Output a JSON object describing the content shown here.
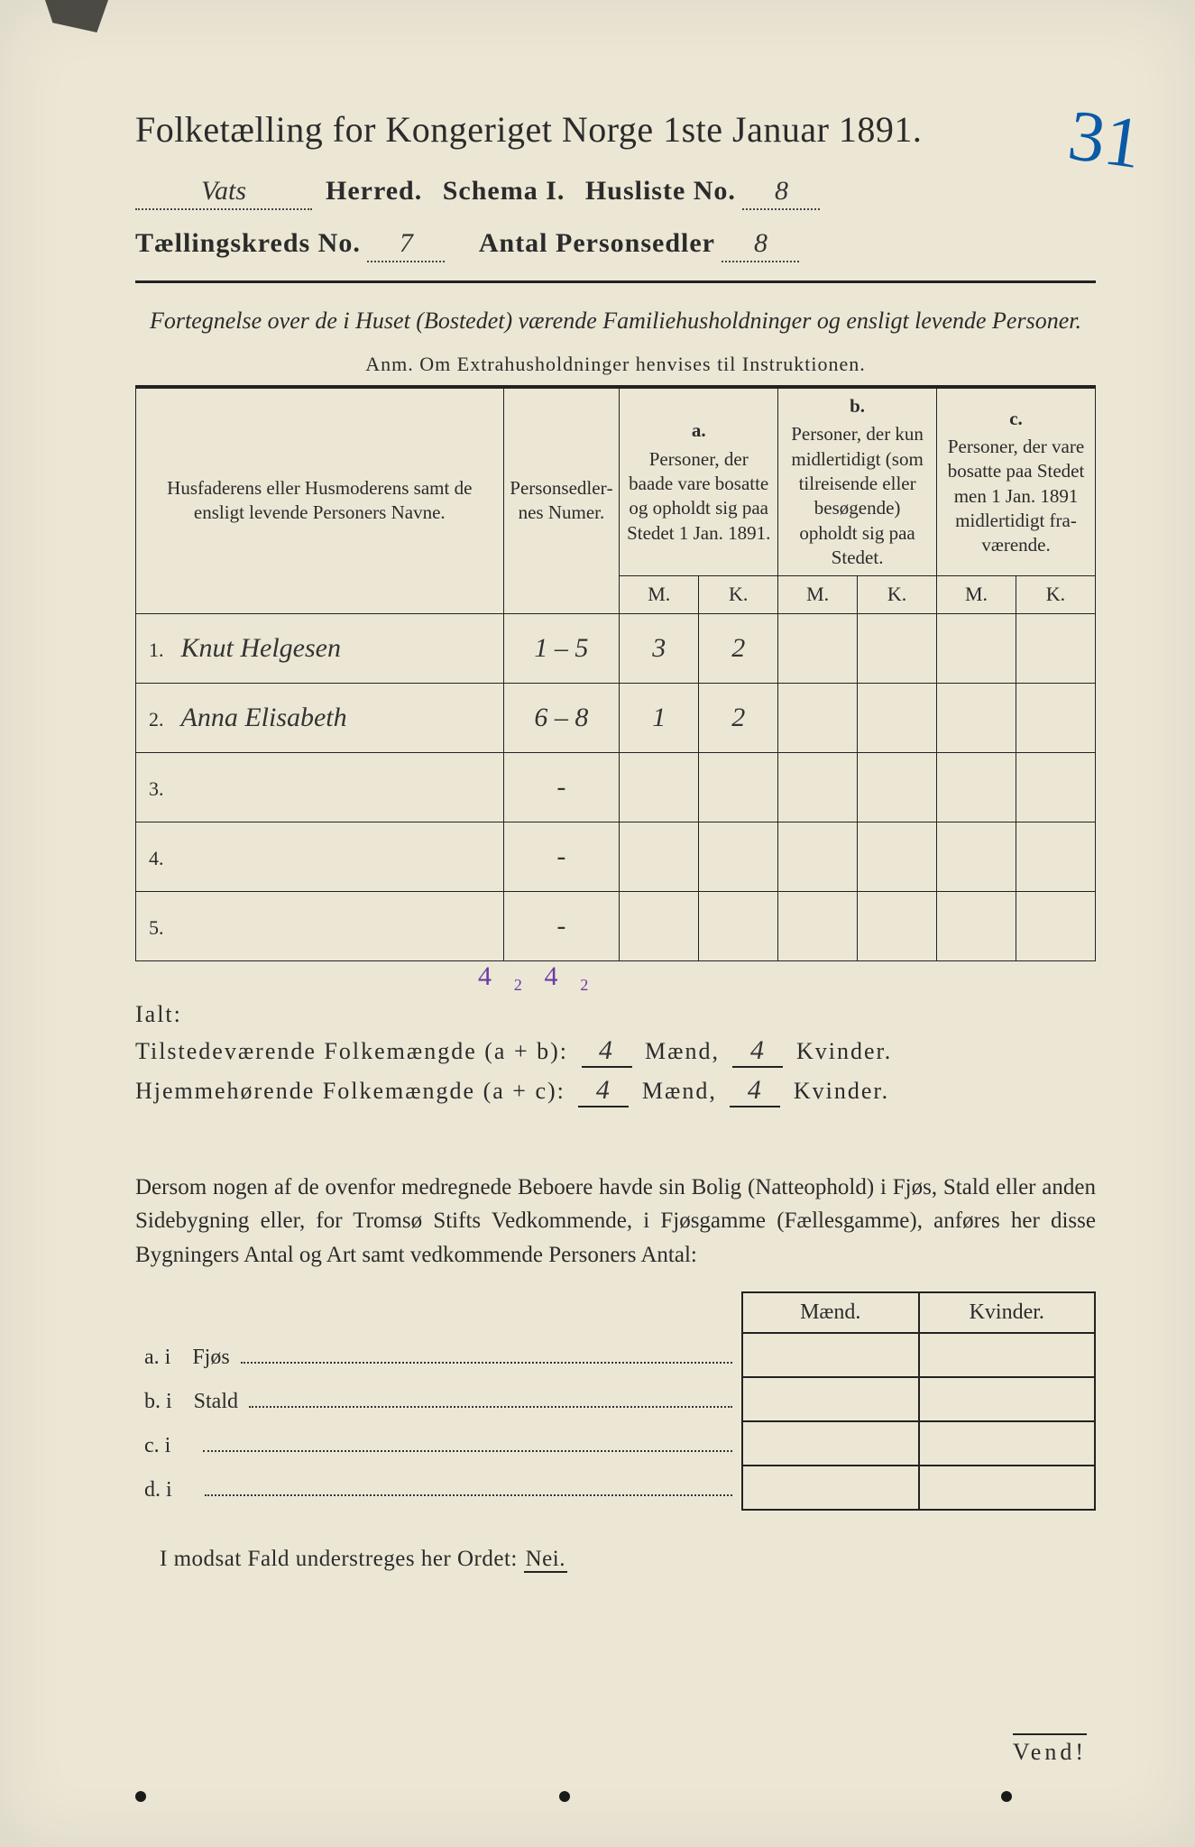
{
  "colors": {
    "paper": "#ece7d5",
    "ink": "#2b2b2b",
    "purple_pencil": "#6a3aa8",
    "blue_crayon": "#0b5aa6",
    "frame": "#b0aca0"
  },
  "page_number_handwritten": "31",
  "title": "Folketælling for Kongeriget Norge 1ste Januar 1891.",
  "header": {
    "herred_value": "Vats",
    "herred_label": "Herred.",
    "schema_label": "Schema I.",
    "husliste_label": "Husliste No.",
    "husliste_value": "8",
    "kreds_label": "Tællingskreds No.",
    "kreds_value": "7",
    "sedler_label": "Antal Personsedler",
    "sedler_value": "8"
  },
  "subtitle": "Fortegnelse over de i Huset (Bostedet) værende Familiehusholdninger og ensligt levende Personer.",
  "anm": "Anm.  Om Extrahusholdninger henvises til Instruktionen.",
  "table": {
    "columns": {
      "name": "Husfaderens eller Husmode­rens samt de ensligt levende Personers Navne.",
      "numer": "Person­sedler­nes Numer.",
      "a_letter": "a.",
      "a": "Personer, der baade vare bo­satte og opholdt sig paa Stedet 1 Jan. 1891.",
      "b_letter": "b.",
      "b": "Personer, der kun midler­tidigt (som tilreisende eller besøgende) opholdt sig paa Stedet.",
      "c_letter": "c.",
      "c": "Personer, der vare bosatte paa Stedet men 1 Jan. 1891 midler­tidigt fra­værende.",
      "M": "M.",
      "K": "K."
    },
    "rows": [
      {
        "n": "1.",
        "name": "Knut Helgesen",
        "numer": "1 – 5",
        "aM": "3",
        "aK": "2",
        "bM": "",
        "bK": "",
        "cM": "",
        "cK": ""
      },
      {
        "n": "2.",
        "name": "Anna Elisabeth",
        "numer": "6 – 8",
        "aM": "1",
        "aK": "2",
        "bM": "",
        "bK": "",
        "cM": "",
        "cK": ""
      },
      {
        "n": "3.",
        "name": "",
        "numer": "-",
        "aM": "",
        "aK": "",
        "bM": "",
        "bK": "",
        "cM": "",
        "cK": ""
      },
      {
        "n": "4.",
        "name": "",
        "numer": "-",
        "aM": "",
        "aK": "",
        "bM": "",
        "bK": "",
        "cM": "",
        "cK": ""
      },
      {
        "n": "5.",
        "name": "",
        "numer": "-",
        "aM": "",
        "aK": "",
        "bM": "",
        "bK": "",
        "cM": "",
        "cK": ""
      }
    ],
    "purple_totals": {
      "aM": "4₂",
      "aK": "4₂"
    }
  },
  "ialt_label": "Ialt:",
  "totals": {
    "present_label_a": "Tilstedeværende Folkemængde (a + b):",
    "home_label_a": "Hjemmehørende Folkemængde (a + c):",
    "maend": "Mænd,",
    "kvinder": "Kvinder.",
    "present_m": "4",
    "present_k": "4",
    "home_m": "4",
    "home_k": "4"
  },
  "lower_paragraph": "Dersom nogen af de ovenfor medregnede Beboere havde sin Bolig (Natte­ophold) i Fjøs, Stald eller anden Sidebygning eller, for Tromsø Stifts Ved­kommende, i Fjøsgamme (Fællesgamme), anføres her disse Bygningers Antal og Art samt vedkommende Personers Antal:",
  "lodging": {
    "head_m": "Mænd.",
    "head_k": "Kvinder.",
    "rows": [
      {
        "k": "a.  i",
        "label": "Fjøs"
      },
      {
        "k": "b.  i",
        "label": "Stald"
      },
      {
        "k": "c.  i",
        "label": ""
      },
      {
        "k": "d.  i",
        "label": ""
      }
    ]
  },
  "nei_line_a": "I modsat Fald understreges her Ordet: ",
  "nei_word": "Nei.",
  "vend": "Vend!"
}
